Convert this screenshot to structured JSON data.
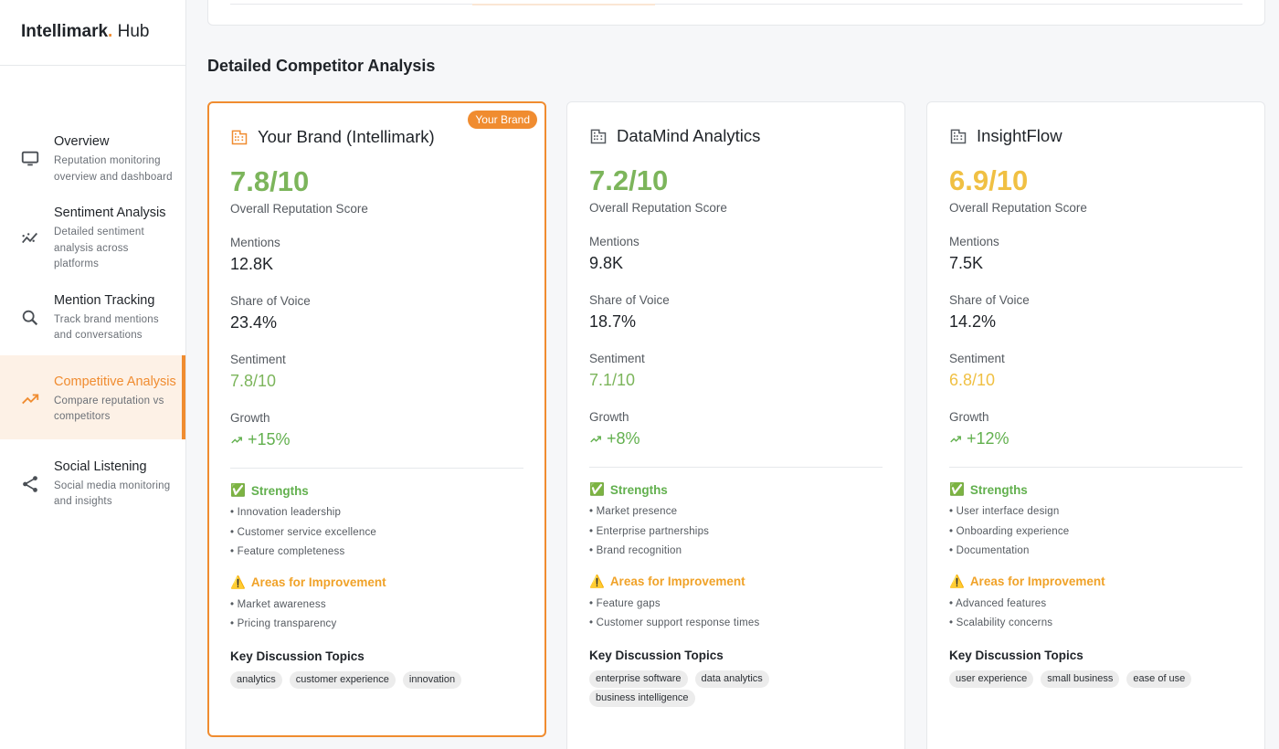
{
  "app": {
    "name_bold": "Intellimark",
    "name_dot": ".",
    "name_rest": " Hub"
  },
  "sidebar": {
    "items": [
      {
        "title": "Overview",
        "desc": "Reputation monitoring overview and dashboard",
        "icon": "monitor-icon"
      },
      {
        "title": "Sentiment Analysis",
        "desc": "Detailed sentiment analysis across platforms",
        "icon": "sentiment-trend-icon"
      },
      {
        "title": "Mention Tracking",
        "desc": "Track brand mentions and conversations",
        "icon": "search-icon"
      },
      {
        "title": "Competitive Analysis",
        "desc": "Compare reputation vs competitors",
        "icon": "trending-up-icon",
        "active": true
      },
      {
        "title": "Social Listening",
        "desc": "Social media monitoring and insights",
        "icon": "share-icon"
      }
    ]
  },
  "section": {
    "title": "Detailed Competitor Analysis"
  },
  "labels": {
    "score": "Overall Reputation Score",
    "mentions": "Mentions",
    "share": "Share of Voice",
    "sentiment": "Sentiment",
    "growth": "Growth",
    "strengths": "Strengths",
    "improvements": "Areas for Improvement",
    "topics": "Key Discussion Topics",
    "strength_emoji": "✅",
    "improve_emoji": "⚠️"
  },
  "colors": {
    "accent": "#f08c30",
    "green": "#7cb55b",
    "yellow": "#f0c043",
    "strengths": "#62b04e",
    "improve": "#f0a228"
  },
  "cards": [
    {
      "name": "Your Brand (Intellimark)",
      "badge": "Your Brand",
      "score": "7.8/10",
      "mentions": "12.8K",
      "share": "23.4%",
      "sentiment": "7.8/10",
      "growth": "+15%",
      "score_color": "#7cb55b",
      "strengths": [
        "• Innovation leadership",
        "• Customer service excellence",
        "• Feature completeness"
      ],
      "improvements": [
        "• Market awareness",
        "• Pricing transparency"
      ],
      "topics": [
        "analytics",
        "customer experience",
        "innovation"
      ]
    },
    {
      "name": "DataMind Analytics",
      "score": "7.2/10",
      "mentions": "9.8K",
      "share": "18.7%",
      "sentiment": "7.1/10",
      "growth": "+8%",
      "score_color": "#7cb55b",
      "strengths": [
        "• Market presence",
        "• Enterprise partnerships",
        "• Brand recognition"
      ],
      "improvements": [
        "• Feature gaps",
        "• Customer support response times"
      ],
      "topics": [
        "enterprise software",
        "data analytics",
        "business intelligence"
      ]
    },
    {
      "name": "InsightFlow",
      "score": "6.9/10",
      "mentions": "7.5K",
      "share": "14.2%",
      "sentiment": "6.8/10",
      "growth": "+12%",
      "score_color": "#f0c043",
      "strengths": [
        "• User interface design",
        "• Onboarding experience",
        "• Documentation"
      ],
      "improvements": [
        "• Advanced features",
        "• Scalability concerns"
      ],
      "topics": [
        "user experience",
        "small business",
        "ease of use"
      ]
    }
  ]
}
